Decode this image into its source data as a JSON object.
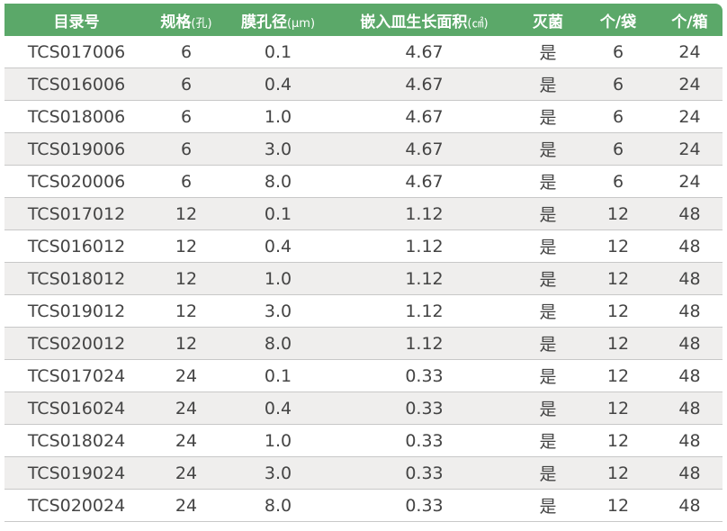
{
  "headers": [
    {
      "main": "目录号",
      "unit": ""
    },
    {
      "main": "规格",
      "unit": "(孔)"
    },
    {
      "main": "膜孔径",
      "unit": "(µm)"
    },
    {
      "main": "嵌入皿生长面积",
      "unit": "(㎠)"
    },
    {
      "main": "灭菌",
      "unit": ""
    },
    {
      "main": "个/袋",
      "unit": ""
    },
    {
      "main": "个/箱",
      "unit": ""
    }
  ],
  "rows": [
    [
      "TCS017006",
      "6",
      "0.1",
      "4.67",
      "是",
      "6",
      "24"
    ],
    [
      "TCS016006",
      "6",
      "0.4",
      "4.67",
      "是",
      "6",
      "24"
    ],
    [
      "TCS018006",
      "6",
      "1.0",
      "4.67",
      "是",
      "6",
      "24"
    ],
    [
      "TCS019006",
      "6",
      "3.0",
      "4.67",
      "是",
      "6",
      "24"
    ],
    [
      "TCS020006",
      "6",
      "8.0",
      "4.67",
      "是",
      "6",
      "24"
    ],
    [
      "TCS017012",
      "12",
      "0.1",
      "1.12",
      "是",
      "12",
      "48"
    ],
    [
      "TCS016012",
      "12",
      "0.4",
      "1.12",
      "是",
      "12",
      "48"
    ],
    [
      "TCS018012",
      "12",
      "1.0",
      "1.12",
      "是",
      "12",
      "48"
    ],
    [
      "TCS019012",
      "12",
      "3.0",
      "1.12",
      "是",
      "12",
      "48"
    ],
    [
      "TCS020012",
      "12",
      "8.0",
      "1.12",
      "是",
      "12",
      "48"
    ],
    [
      "TCS017024",
      "24",
      "0.1",
      "0.33",
      "是",
      "12",
      "48"
    ],
    [
      "TCS016024",
      "24",
      "0.4",
      "0.33",
      "是",
      "12",
      "48"
    ],
    [
      "TCS018024",
      "24",
      "1.0",
      "0.33",
      "是",
      "12",
      "48"
    ],
    [
      "TCS019024",
      "24",
      "3.0",
      "0.33",
      "是",
      "12",
      "48"
    ],
    [
      "TCS020024",
      "24",
      "8.0",
      "0.33",
      "是",
      "12",
      "48"
    ]
  ],
  "colors": {
    "header": "#5ba869",
    "alt_row": "#efeeed"
  }
}
